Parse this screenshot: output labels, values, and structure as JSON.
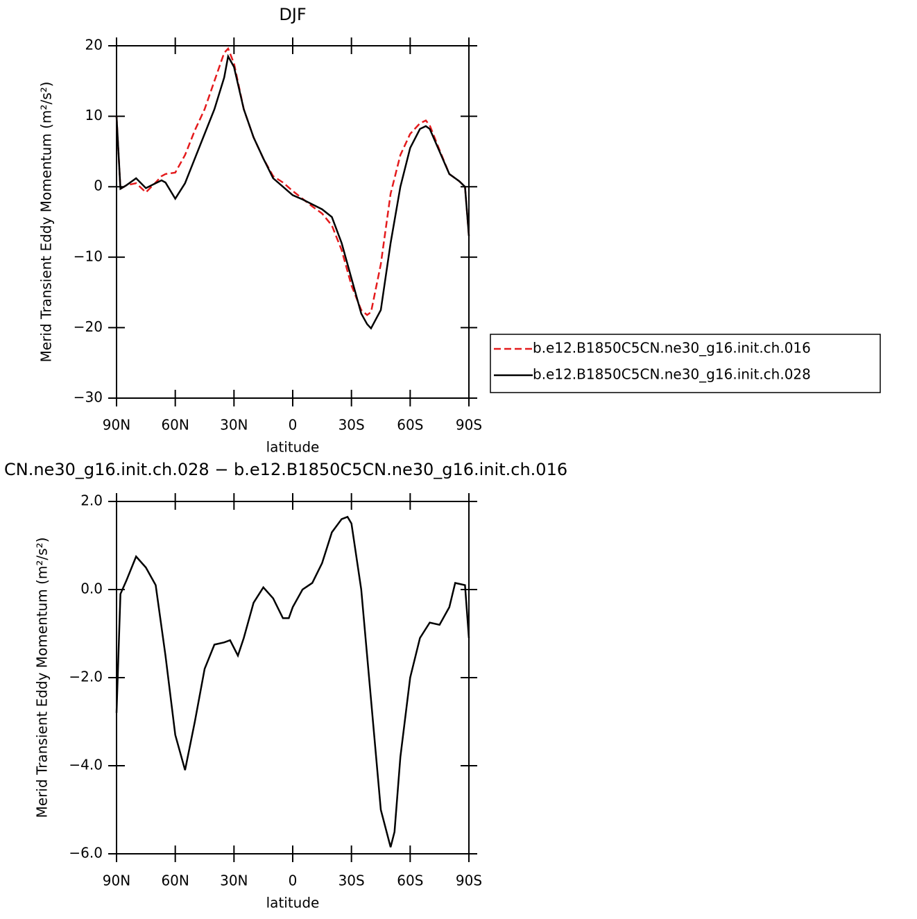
{
  "chart_data": [
    {
      "type": "line",
      "title": "DJF",
      "xlabel": "latitude",
      "ylabel": "Merid Transient Eddy Momentum (m²/s²)",
      "x": [
        90,
        88,
        85,
        80,
        75,
        70,
        67,
        65,
        60,
        55,
        50,
        45,
        40,
        35,
        33,
        30,
        25,
        20,
        15,
        10,
        5,
        0,
        -5,
        -10,
        -15,
        -20,
        -25,
        -30,
        -35,
        -38,
        -40,
        -45,
        -50,
        -55,
        -60,
        -65,
        -68,
        -70,
        -75,
        -80,
        -85,
        -88,
        -90
      ],
      "series": [
        {
          "name": "b.e12.B1850C5CN.ne30_g16.init.ch.016",
          "color": "#e41a1c",
          "line_style": "dashed",
          "values": [
            10,
            -0.3,
            0.2,
            0.5,
            -0.8,
            0.6,
            1.5,
            1.8,
            2,
            4.5,
            8,
            11,
            15,
            19,
            19.6,
            17.5,
            11,
            7,
            4,
            1.5,
            0.6,
            -0.6,
            -1.7,
            -2.8,
            -3.8,
            -5.5,
            -9,
            -14,
            -17.5,
            -18.2,
            -17.8,
            -11,
            -1,
            4.5,
            7.5,
            9,
            9.4,
            8.7,
            5.2,
            1.8,
            0.8,
            0,
            -7
          ]
        },
        {
          "name": "b.e12.B1850C5CN.ne30_g16.init.ch.028",
          "color": "#000000",
          "line_style": "solid",
          "values": [
            10,
            -0.3,
            0.2,
            1.2,
            -0.2,
            0.5,
            0.9,
            0.6,
            -1.7,
            0.5,
            4,
            7.5,
            11,
            15.5,
            18.5,
            17,
            11,
            7,
            4,
            1.2,
            0,
            -1.2,
            -1.8,
            -2.5,
            -3.2,
            -4.3,
            -8,
            -13,
            -18,
            -19.5,
            -20.1,
            -17.5,
            -8,
            0,
            5.5,
            8.2,
            8.6,
            8.2,
            5,
            1.8,
            0.8,
            0,
            -7
          ]
        }
      ],
      "xlim": [
        90,
        -90
      ],
      "xticks": [
        {
          "value": 90,
          "label": "90N"
        },
        {
          "value": 60,
          "label": "60N"
        },
        {
          "value": 30,
          "label": "30N"
        },
        0,
        {
          "value": -30,
          "label": "30S"
        },
        {
          "value": -60,
          "label": "60S"
        },
        {
          "value": -90,
          "label": "90S"
        }
      ],
      "ylim": [
        -30,
        20
      ],
      "yticks": [
        {
          "value": 20,
          "label": "20"
        },
        {
          "value": 10,
          "label": "10"
        },
        0,
        {
          "value": -10,
          "label": "−10"
        },
        {
          "value": -20,
          "label": "−20"
        },
        {
          "value": -30,
          "label": "−30"
        }
      ],
      "legend": "right"
    },
    {
      "type": "line",
      "title": "CN.ne30_g16.init.ch.028 − b.e12.B1850C5CN.ne30_g16.init.ch.016",
      "xlabel": "latitude",
      "ylabel": "Merid Transient Eddy Momentum (m²/s²)",
      "x": [
        90,
        88,
        85,
        80,
        75,
        70,
        65,
        60,
        55,
        50,
        45,
        40,
        35,
        32,
        28,
        25,
        20,
        15,
        10,
        5,
        2,
        0,
        -5,
        -10,
        -15,
        -20,
        -25,
        -28,
        -30,
        -35,
        -40,
        -45,
        -50,
        -52,
        -55,
        -60,
        -65,
        -70,
        -75,
        -80,
        -83,
        -86,
        -88,
        -90
      ],
      "values": [
        -2.8,
        -0.1,
        0.2,
        0.75,
        0.5,
        0.1,
        -1.5,
        -3.3,
        -4.1,
        -3.0,
        -1.8,
        -1.25,
        -1.2,
        -1.15,
        -1.5,
        -1.1,
        -0.3,
        0.05,
        -0.2,
        -0.65,
        -0.65,
        -0.4,
        0,
        0.15,
        0.6,
        1.3,
        1.6,
        1.65,
        1.5,
        0,
        -2.5,
        -5,
        -5.85,
        -5.5,
        -3.8,
        -2,
        -1.1,
        -0.75,
        -0.8,
        -0.4,
        0.15,
        0.12,
        0.1,
        -1.1
      ],
      "color": "#000000",
      "xlim": [
        90,
        -90
      ],
      "xticks": [
        {
          "value": 90,
          "label": "90N"
        },
        {
          "value": 60,
          "label": "60N"
        },
        {
          "value": 30,
          "label": "30N"
        },
        0,
        {
          "value": -30,
          "label": "30S"
        },
        {
          "value": -60,
          "label": "60S"
        },
        {
          "value": -90,
          "label": "90S"
        }
      ],
      "ylim": [
        -6,
        2
      ],
      "yticks": [
        {
          "value": 2,
          "label": "2.0"
        },
        {
          "value": 0,
          "label": "0.0"
        },
        {
          "value": -2,
          "label": "−2.0"
        },
        {
          "value": -4,
          "label": "−4.0"
        },
        {
          "value": -6,
          "label": "−6.0"
        }
      ]
    }
  ]
}
